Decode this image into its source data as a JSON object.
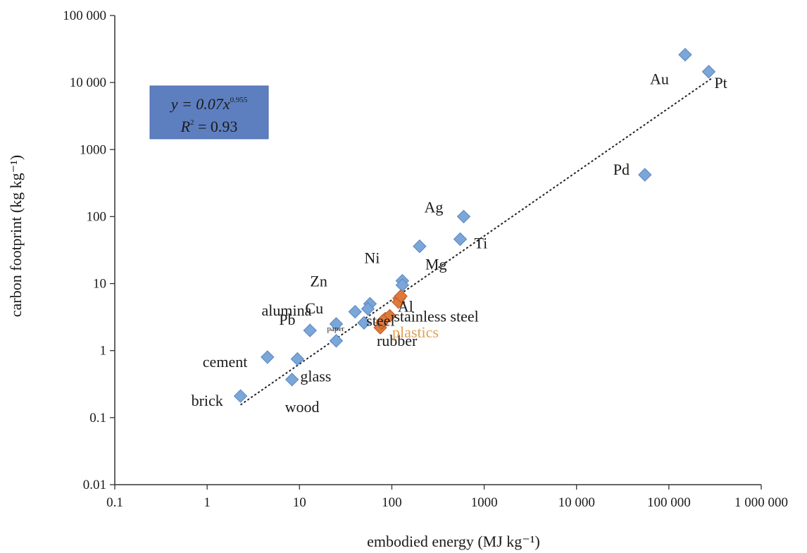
{
  "chart_data": {
    "type": "scatter",
    "title": "",
    "xlabel": "embodied energy (MJ kg⁻¹)",
    "ylabel": "carbon footprint (kg kg⁻¹)",
    "x_scale": "log",
    "y_scale": "log",
    "xlim": [
      0.1,
      1000000
    ],
    "ylim": [
      0.01,
      100000
    ],
    "grid": false,
    "x_ticks": [
      0.1,
      1,
      10,
      100,
      1000,
      10000,
      100000,
      1000000
    ],
    "x_tick_labels": [
      "0.1",
      "1",
      "10",
      "100",
      "1000",
      "10 000",
      "100 000",
      "1 000 000"
    ],
    "y_ticks": [
      0.01,
      0.1,
      1,
      10,
      100,
      1000,
      10000,
      100000
    ],
    "y_tick_labels": [
      "0.01",
      "0.1",
      "1",
      "10",
      "100",
      "1000",
      "10 000",
      "100 000"
    ],
    "colors": {
      "metals": "#7aa6d8",
      "plastics": "#e07a3c",
      "plastics_label": "#e0a050",
      "equation_box": "#5d7fc0",
      "trendline": "#222222"
    },
    "series": [
      {
        "points": [
          {
            "x": 2.3,
            "y": 0.21,
            "label": "brick"
          },
          {
            "x": 4.5,
            "y": 0.8,
            "label": "cement"
          },
          {
            "x": 8.3,
            "y": 0.37,
            "label": "wood"
          },
          {
            "x": 9.5,
            "y": 0.75,
            "label": "glass"
          },
          {
            "x": 13,
            "y": 2.0,
            "label": "Pb"
          },
          {
            "x": 25,
            "y": 1.4,
            "label": "paper"
          },
          {
            "x": 25,
            "y": 2.5,
            "label": "alumina"
          },
          {
            "x": 40,
            "y": 3.8,
            "label": "steel"
          },
          {
            "x": 50,
            "y": 2.6,
            "label": "rubber"
          },
          {
            "x": 58,
            "y": 5.0,
            "label": "Cu"
          },
          {
            "x": 55,
            "y": 4.2,
            "label": "Zn"
          },
          {
            "x": 130,
            "y": 11.0,
            "label": "Ni"
          },
          {
            "x": 130,
            "y": 9.5,
            "label": "stainless steel"
          },
          {
            "x": 200,
            "y": 36,
            "label": "Mg"
          },
          {
            "x": 550,
            "y": 46,
            "label": "Ti"
          },
          {
            "x": 600,
            "y": 100,
            "label": "Ag"
          },
          {
            "x": 55000,
            "y": 420,
            "label": "Pd"
          },
          {
            "x": 150000,
            "y": 26000,
            "label": "Au"
          },
          {
            "x": 270000,
            "y": 14500,
            "label": "Pt"
          }
        ]
      },
      {
        "points": [
          {
            "x": 75,
            "y": 2.2
          },
          {
            "x": 78,
            "y": 2.6
          },
          {
            "x": 85,
            "y": 3.0
          },
          {
            "x": 95,
            "y": 3.3
          },
          {
            "x": 80,
            "y": 2.8
          },
          {
            "x": 120,
            "y": 6.0,
            "label": "Al"
          },
          {
            "x": 118,
            "y": 5.3
          },
          {
            "x": 125,
            "y": 6.5
          }
        ],
        "group_label": "plastics"
      }
    ],
    "trendline": {
      "equation": "y = 0.07x0.955",
      "equation_prefix": "y = 0.07x",
      "equation_exponent": "0.955",
      "r2": "R2 = 0.93",
      "r2_prefix": "R",
      "r2_sup": "2",
      "r2_suffix": " = 0.93",
      "coef": 0.07,
      "exp": 0.955,
      "x_range": [
        2.3,
        300000
      ]
    }
  }
}
